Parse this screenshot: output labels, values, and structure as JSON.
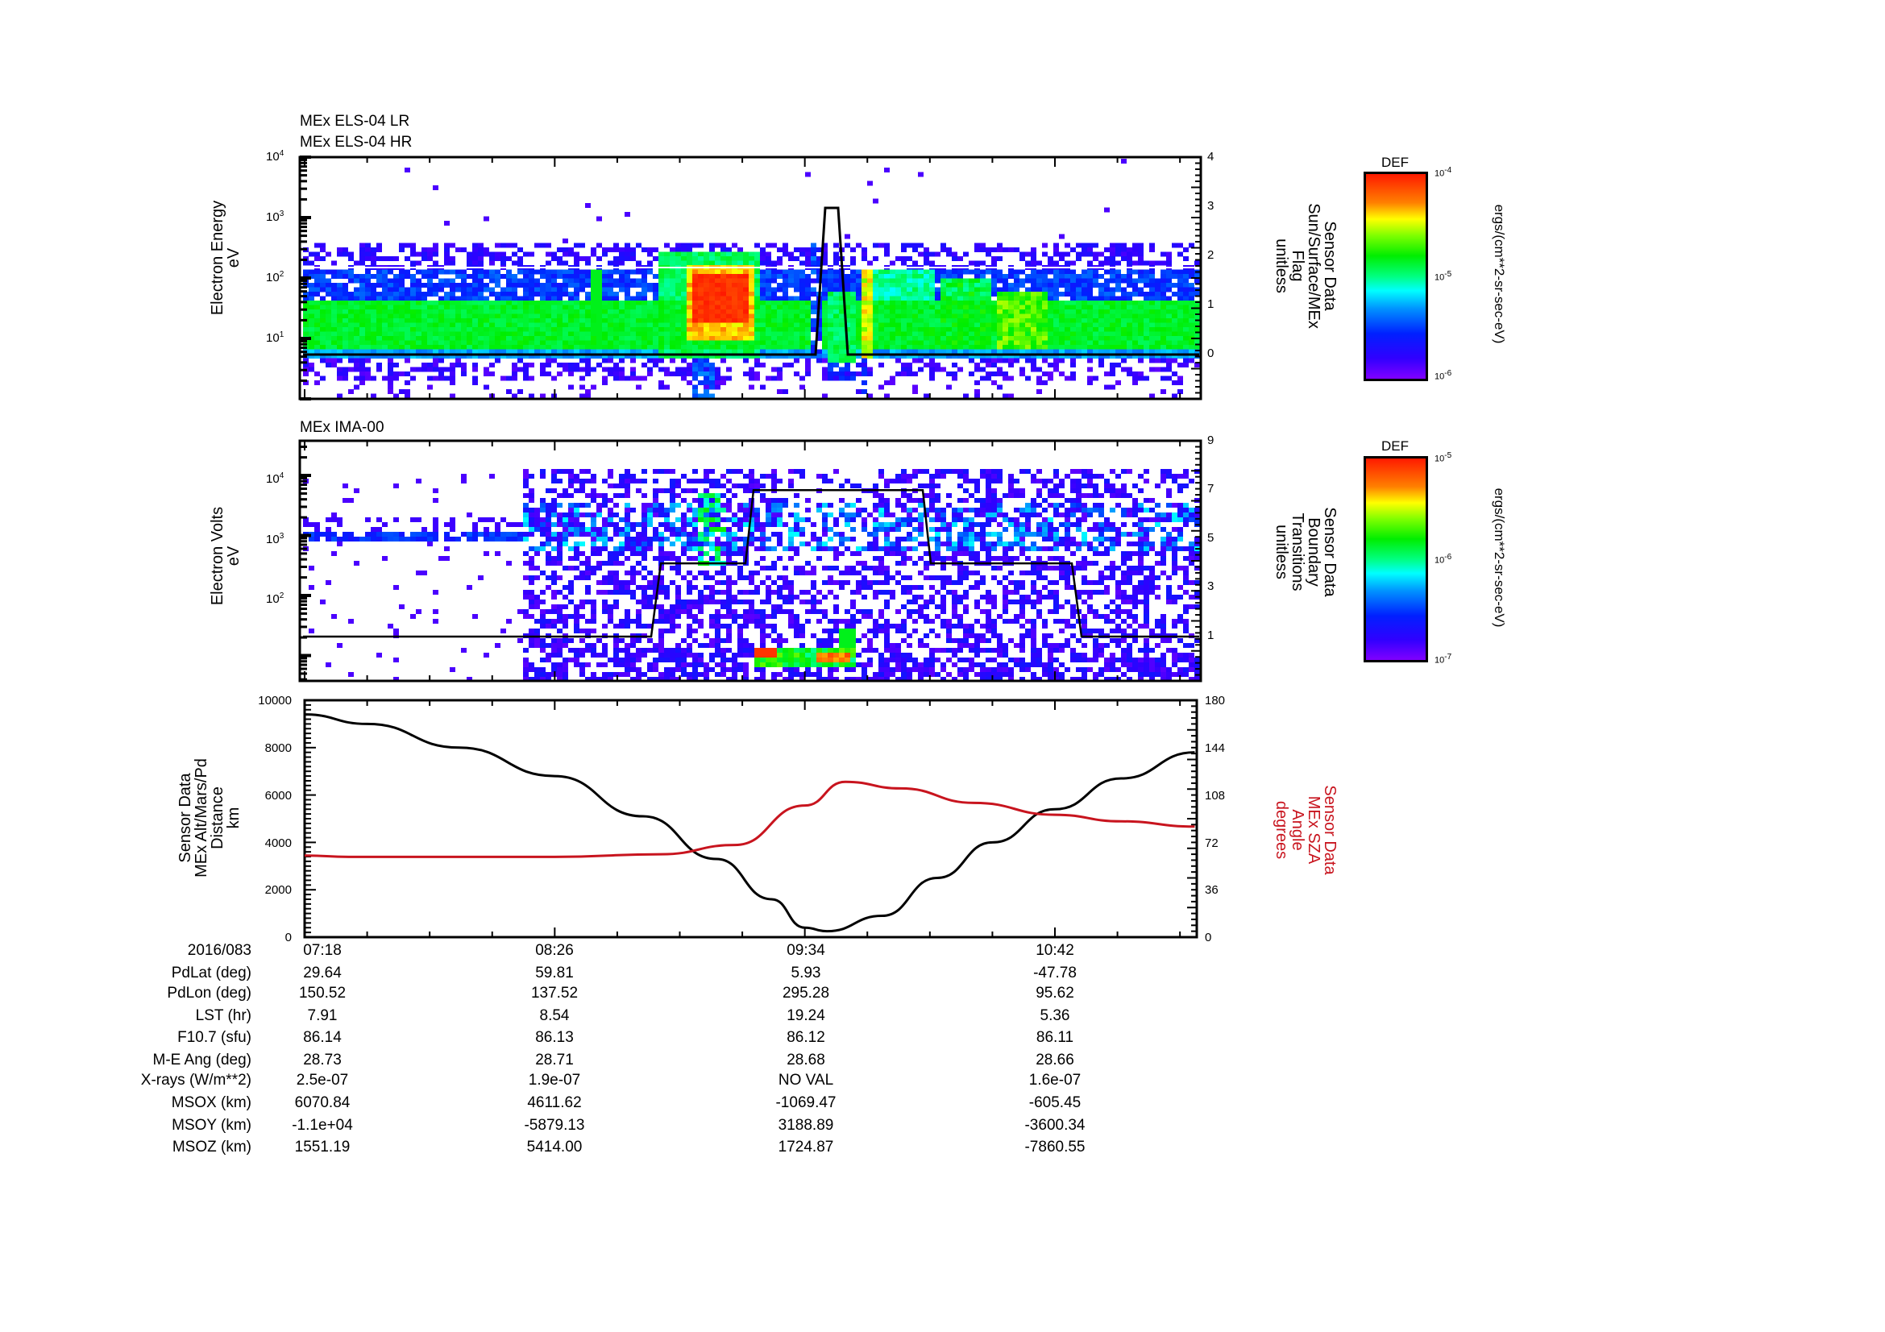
{
  "panels": {
    "els": {
      "titles": [
        "MEx ELS-04 LR",
        "MEx ELS-04 HR"
      ],
      "ylabel": [
        "Electron Energy",
        "eV"
      ],
      "yticks": [
        {
          "base": "10",
          "exp": "4"
        },
        {
          "base": "10",
          "exp": "3"
        },
        {
          "base": "10",
          "exp": "2"
        },
        {
          "base": "10",
          "exp": "1"
        }
      ],
      "right_ylabel": [
        "Sensor Data",
        "Sun/Surface/MEx",
        "Flag",
        "unitless"
      ],
      "right_yticks": [
        "4",
        "3",
        "2",
        "1",
        "0"
      ],
      "colorbar": {
        "title": "DEF",
        "ticks": [
          {
            "base": "10",
            "exp": "-4"
          },
          {
            "base": "10",
            "exp": "-5"
          },
          {
            "base": "10",
            "exp": "-6"
          }
        ],
        "units": "ergs/(cm**2-sr-sec-eV)"
      }
    },
    "ima": {
      "title": "MEx IMA-00",
      "ylabel": [
        "Electron Volts",
        "eV"
      ],
      "yticks": [
        {
          "base": "10",
          "exp": "4"
        },
        {
          "base": "10",
          "exp": "3"
        },
        {
          "base": "10",
          "exp": "2"
        }
      ],
      "right_ylabel": [
        "Sensor Data",
        "Boundary",
        "Transitions",
        "unitless"
      ],
      "right_yticks": [
        "9",
        "7",
        "5",
        "3",
        "1"
      ],
      "colorbar": {
        "title": "DEF",
        "ticks": [
          {
            "base": "10",
            "exp": "-5"
          },
          {
            "base": "10",
            "exp": "-6"
          },
          {
            "base": "10",
            "exp": "-7"
          }
        ],
        "units": "ergs/(cm**2-sr-sec-eV)"
      }
    },
    "orbit": {
      "ylabel": [
        "Sensor Data",
        "MEx Alt/Mars/Pd",
        "Distance",
        "km"
      ],
      "yticks": [
        "10000",
        "8000",
        "6000",
        "4000",
        "2000",
        "0"
      ],
      "right_ylabel": [
        "Sensor Data",
        "MEx SZA",
        "Angle",
        "degrees"
      ],
      "right_yticks": [
        "180",
        "144",
        "108",
        "72",
        "36",
        "0"
      ]
    }
  },
  "ephemeris": {
    "date_label": "2016/083",
    "times": [
      "07:18",
      "08:26",
      "09:34",
      "10:42"
    ],
    "rows": [
      {
        "label": "PdLat (deg)",
        "values": [
          "29.64",
          "59.81",
          "5.93",
          "-47.78"
        ]
      },
      {
        "label": "PdLon (deg)",
        "values": [
          "150.52",
          "137.52",
          "295.28",
          "95.62"
        ]
      },
      {
        "label": "LST (hr)",
        "values": [
          "7.91",
          "8.54",
          "19.24",
          "5.36"
        ]
      },
      {
        "label": "F10.7 (sfu)",
        "values": [
          "86.14",
          "86.13",
          "86.12",
          "86.11"
        ]
      },
      {
        "label": "M-E Ang (deg)",
        "values": [
          "28.73",
          "28.71",
          "28.68",
          "28.66"
        ]
      },
      {
        "label": "X-rays (W/m**2)",
        "values": [
          "2.5e-07",
          "1.9e-07",
          "NO VAL",
          "1.6e-07"
        ]
      },
      {
        "label": "MSOX (km)",
        "values": [
          "6070.84",
          "4611.62",
          "-1069.47",
          "-605.45"
        ]
      },
      {
        "label": "MSOY (km)",
        "values": [
          "-1.1e+04",
          "-5879.13",
          "3188.89",
          "-3600.34"
        ]
      },
      {
        "label": "MSOZ (km)",
        "values": [
          "1551.19",
          "5414.00",
          "1724.87",
          "-7860.55"
        ]
      }
    ]
  },
  "colors": {
    "axis": "#000000",
    "sza": "#c8141e",
    "altitude": "#000000"
  },
  "chart_data": [
    {
      "type": "heatmap",
      "title": "MEx ELS-04 LR / MEx ELS-04 HR",
      "xlabel": "UT 2016/083",
      "ylabel": "Electron Energy (eV)",
      "yscale": "log",
      "ylim": [
        1,
        10000
      ],
      "colorbar": {
        "label": "DEF ergs/(cm**2-sr-sec-eV)",
        "range": [
          1e-06,
          0.0001
        ]
      },
      "x_ticks": [
        "07:18",
        "08:26",
        "09:34",
        "10:42"
      ],
      "overlay": {
        "name": "Sensor Data Sun/Surface/MEx Flag (unitless)",
        "ylim": [
          -0.9,
          4
        ],
        "x": [
          "07:18",
          "09:30",
          "09:32",
          "09:34",
          "09:36",
          "09:38",
          "11:20"
        ],
        "y": [
          0,
          0,
          2.9,
          2.9,
          2.9,
          0,
          0
        ]
      },
      "features": [
        {
          "time": "07:18-09:30",
          "energy_eV": "7-40",
          "intensity": "~1e-5 (green)"
        },
        {
          "time": "08:55-09:05",
          "energy_eV": "40-200",
          "intensity": "~1e-4 (red)"
        },
        {
          "time": "09:40-09:45",
          "energy_eV": "40-150",
          "intensity": "~5e-5 (red/orange)"
        },
        {
          "time": "10:20-10:45",
          "energy_eV": "20-80",
          "intensity": "~3e-5 (yellow)"
        }
      ]
    },
    {
      "type": "heatmap",
      "title": "MEx IMA-00",
      "xlabel": "UT 2016/083",
      "ylabel": "Electron Volts (eV)",
      "yscale": "log",
      "ylim": [
        10,
        40000
      ],
      "colorbar": {
        "label": "DEF ergs/(cm**2-sr-sec-eV)",
        "range": [
          1e-07,
          1e-05
        ]
      },
      "x_ticks": [
        "07:18",
        "08:26",
        "09:34",
        "10:42"
      ],
      "overlay": {
        "name": "Sensor Data Boundary Transitions (unitless)",
        "ylim": [
          -0.5,
          9
        ],
        "x": [
          "07:18",
          "09:00",
          "09:03",
          "09:17",
          "09:19",
          "09:56",
          "09:58",
          "10:47",
          "10:51",
          "11:20"
        ],
        "y": [
          1,
          1,
          4,
          4,
          7,
          7,
          4,
          4,
          1,
          1
        ]
      },
      "features": [
        {
          "time": "07:18-08:05",
          "energy_eV": "~1000-1300",
          "intensity": "~2e-7 (blue)"
        },
        {
          "time": "09:25-09:40",
          "energy_eV": "~15-25",
          "intensity": "~1e-5 (red)"
        }
      ]
    },
    {
      "type": "line",
      "title": "",
      "xlabel": "UT 2016/083",
      "x_ticks": [
        "07:18",
        "08:26",
        "09:34",
        "10:42"
      ],
      "series": [
        {
          "name": "Sensor Data MEx Alt/Mars/Pd Distance (km)",
          "axis": "left",
          "ylim": [
            0,
            10000
          ],
          "x": [
            "07:18",
            "07:35",
            "08:00",
            "08:26",
            "08:50",
            "09:10",
            "09:25",
            "09:34",
            "09:40",
            "09:55",
            "10:10",
            "10:25",
            "10:42",
            "11:00",
            "11:20"
          ],
          "values": [
            9400,
            9000,
            8000,
            6800,
            5100,
            3300,
            1600,
            400,
            250,
            900,
            2500,
            4000,
            5400,
            6700,
            7800
          ]
        },
        {
          "name": "Sensor Data MEx SZA Angle (degrees)",
          "axis": "right",
          "ylim": [
            0,
            180
          ],
          "x": [
            "07:18",
            "07:30",
            "08:26",
            "08:55",
            "09:15",
            "09:34",
            "09:45",
            "10:00",
            "10:20",
            "10:42",
            "11:00",
            "11:20"
          ],
          "values": [
            62,
            61,
            61,
            63,
            70,
            100,
            118,
            113,
            102,
            93,
            88,
            84
          ]
        }
      ]
    }
  ]
}
